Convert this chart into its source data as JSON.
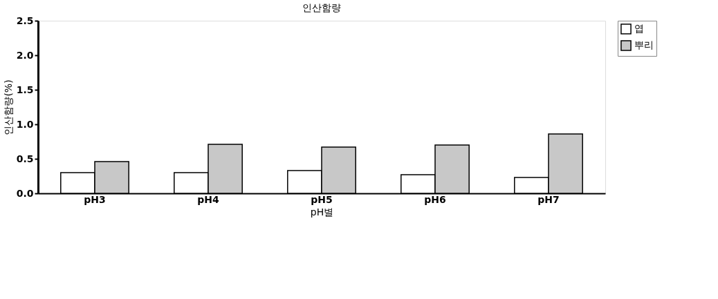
{
  "chart_data": {
    "type": "bar",
    "title": "인산함량",
    "xlabel": "pH별",
    "ylabel": "인산함량(%)",
    "categories": [
      "pH3",
      "pH4",
      "pH5",
      "pH6",
      "pH7"
    ],
    "series": [
      {
        "name": "엽",
        "color": "#ffffff",
        "values": [
          0.3,
          0.3,
          0.33,
          0.27,
          0.23
        ]
      },
      {
        "name": "뿌리",
        "color": "#c8c8c8",
        "values": [
          0.46,
          0.71,
          0.67,
          0.7,
          0.86
        ]
      }
    ],
    "ylim": [
      0,
      2.5
    ],
    "yticks": [
      {
        "value": 0,
        "label": "0.0"
      },
      {
        "value": 0.5,
        "label": "0.5"
      },
      {
        "value": 1,
        "label": "1.0"
      },
      {
        "value": 1.5,
        "label": "1.5"
      },
      {
        "value": 2,
        "label": "2.0"
      },
      {
        "value": 2.5,
        "label": "2.5"
      }
    ],
    "grid": false,
    "legend": "right"
  }
}
